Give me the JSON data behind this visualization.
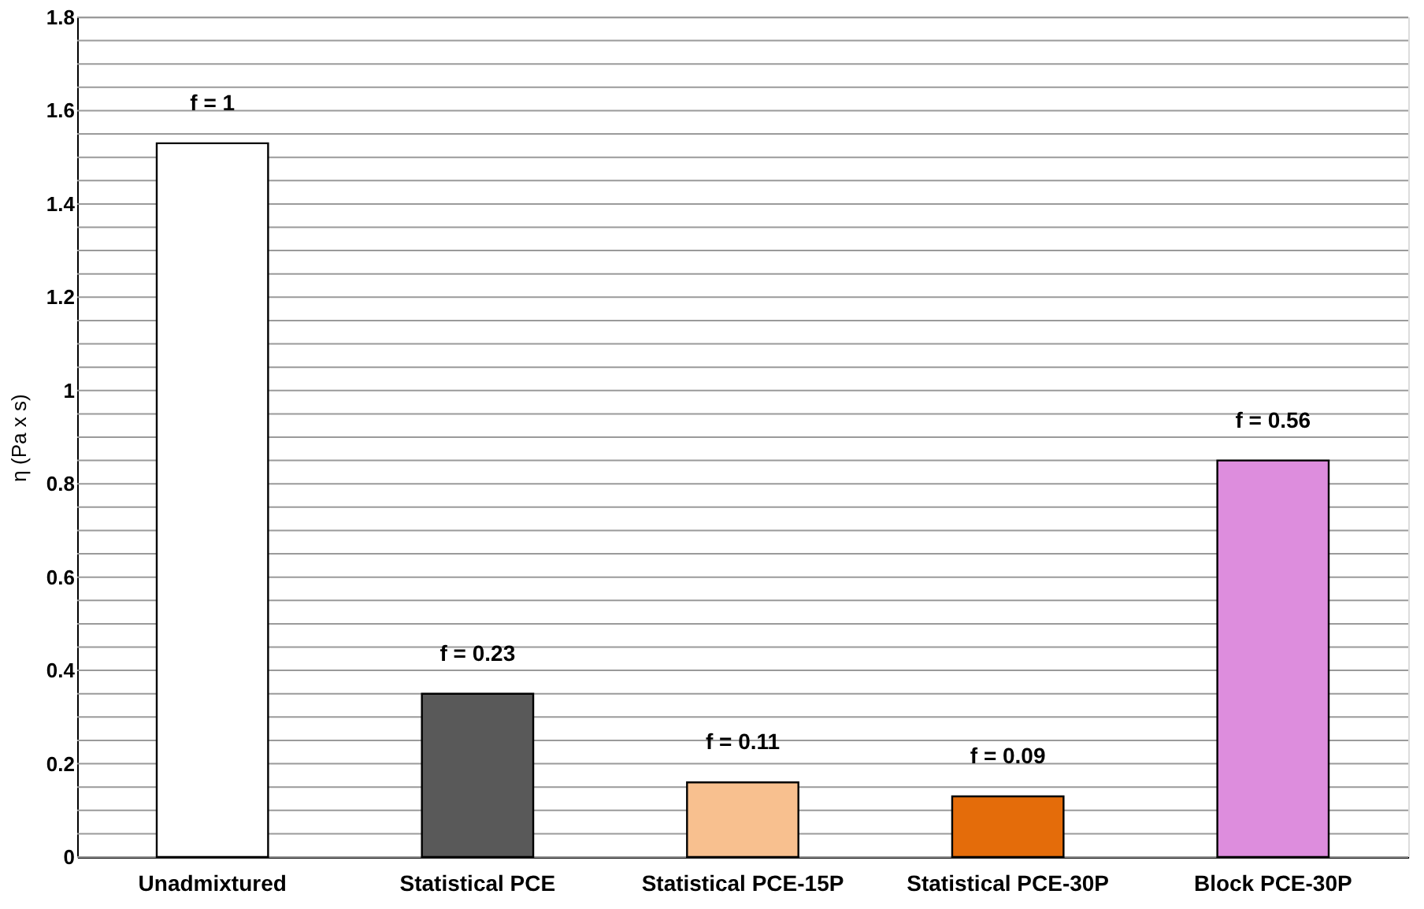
{
  "chart_data": {
    "type": "bar",
    "ylabel": "η (Pa x s)",
    "categories": [
      "Unadmixtured",
      "Statistical PCE",
      "Statistical PCE-15P",
      "Statistical PCE-30P",
      "Block PCE-30P"
    ],
    "values": [
      1.53,
      0.35,
      0.16,
      0.13,
      0.85
    ],
    "colors": [
      "#ffffff",
      "#595959",
      "#f8c08f",
      "#e46c0a",
      "#dd8ddd"
    ],
    "ylim": [
      0,
      1.8
    ],
    "yticks": [
      0,
      {
        "value": 0.05,
        "label": null
      },
      {
        "value": 0.1,
        "label": null
      },
      {
        "value": 0.15,
        "label": null
      },
      0.2,
      {
        "value": 0.25,
        "label": null
      },
      {
        "value": 0.3,
        "label": null
      },
      {
        "value": 0.35,
        "label": null
      },
      0.4,
      {
        "value": 0.45,
        "label": null
      },
      {
        "value": 0.5,
        "label": null
      },
      {
        "value": 0.55,
        "label": null
      },
      0.6,
      {
        "value": 0.65,
        "label": null
      },
      {
        "value": 0.7,
        "label": null
      },
      {
        "value": 0.75,
        "label": null
      },
      0.8,
      {
        "value": 0.85,
        "label": null
      },
      {
        "value": 0.9,
        "label": null
      },
      {
        "value": 0.95,
        "label": null
      },
      1,
      {
        "value": 1.05,
        "label": null
      },
      {
        "value": 1.1,
        "label": null
      },
      {
        "value": 1.15,
        "label": null
      },
      1.2,
      {
        "value": 1.25,
        "label": null
      },
      {
        "value": 1.3,
        "label": null
      },
      {
        "value": 1.35,
        "label": null
      },
      1.4,
      {
        "value": 1.45,
        "label": null
      },
      {
        "value": 1.5,
        "label": null
      },
      {
        "value": 1.55,
        "label": null
      },
      1.6,
      {
        "value": 1.65,
        "label": null
      },
      {
        "value": 1.7,
        "label": null
      },
      {
        "value": 1.75,
        "label": null
      },
      1.8
    ],
    "grid": "y",
    "annotations": [
      {
        "text": "f = 1",
        "x": "Unadmixtured",
        "y": 1.53
      },
      {
        "text": "f = 0.23",
        "x": "Statistical PCE",
        "y": 0.35
      },
      {
        "text": "f = 0.11",
        "x": "Statistical PCE-15P",
        "y": 0.16
      },
      {
        "text": "f = 0.09",
        "x": "Statistical PCE-30P",
        "y": 0.13
      },
      {
        "text": "f = 0.56",
        "x": "Block PCE-30P",
        "y": 0.85
      }
    ]
  }
}
